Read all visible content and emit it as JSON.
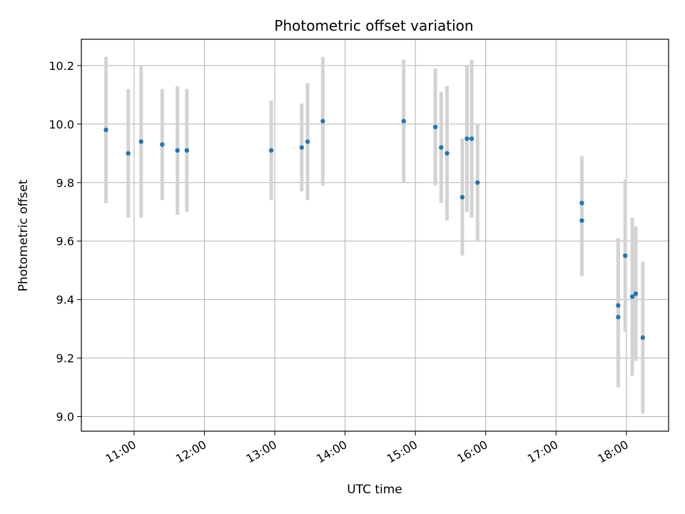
{
  "chart_data": {
    "type": "scatter",
    "title": "Photometric offset variation",
    "xlabel": "UTC time",
    "ylabel": "Photometric offset",
    "x_is_time": true,
    "xlim": [
      "10:15",
      "18:36"
    ],
    "ylim": [
      8.95,
      10.29
    ],
    "xticks": [
      "11:00",
      "12:00",
      "13:00",
      "14:00",
      "15:00",
      "16:00",
      "17:00",
      "18:00"
    ],
    "yticks": [
      "9.0",
      "9.2",
      "9.4",
      "9.6",
      "9.8",
      "10.0",
      "10.2"
    ],
    "grid": true,
    "colors": {
      "points": "#1f77b4",
      "errorbars": "#d3d3d3",
      "grid": "#b0b0b0",
      "axes": "#000000"
    },
    "series": [
      {
        "points": [
          {
            "x": "10:36",
            "y": 9.98,
            "err": 0.25
          },
          {
            "x": "10:55",
            "y": 9.9,
            "err": 0.22
          },
          {
            "x": "11:06",
            "y": 9.94,
            "err": 0.26
          },
          {
            "x": "11:24",
            "y": 9.93,
            "err": 0.19
          },
          {
            "x": "11:37",
            "y": 9.91,
            "err": 0.22
          },
          {
            "x": "11:45",
            "y": 9.91,
            "err": 0.21
          },
          {
            "x": "12:57",
            "y": 9.91,
            "err": 0.17
          },
          {
            "x": "13:23",
            "y": 9.92,
            "err": 0.15
          },
          {
            "x": "13:28",
            "y": 9.94,
            "err": 0.2
          },
          {
            "x": "13:41",
            "y": 10.01,
            "err": 0.22
          },
          {
            "x": "14:50",
            "y": 10.01,
            "err": 0.21
          },
          {
            "x": "15:17",
            "y": 9.99,
            "err": 0.2
          },
          {
            "x": "15:22",
            "y": 9.92,
            "err": 0.19
          },
          {
            "x": "15:27",
            "y": 9.9,
            "err": 0.23
          },
          {
            "x": "15:40",
            "y": 9.75,
            "err": 0.2
          },
          {
            "x": "15:44",
            "y": 9.95,
            "err": 0.25
          },
          {
            "x": "15:48",
            "y": 9.95,
            "err": 0.27
          },
          {
            "x": "15:53",
            "y": 9.8,
            "err": 0.2
          },
          {
            "x": "17:22",
            "y": 9.73,
            "err": 0.16
          },
          {
            "x": "17:22",
            "y": 9.67,
            "err": 0.19
          },
          {
            "x": "17:53",
            "y": 9.38,
            "err": 0.23
          },
          {
            "x": "17:53",
            "y": 9.34,
            "err": 0.24
          },
          {
            "x": "17:59",
            "y": 9.55,
            "err": 0.26
          },
          {
            "x": "18:05",
            "y": 9.41,
            "err": 0.27
          },
          {
            "x": "18:08",
            "y": 9.42,
            "err": 0.23
          },
          {
            "x": "18:14",
            "y": 9.27,
            "err": 0.26
          }
        ]
      }
    ]
  }
}
